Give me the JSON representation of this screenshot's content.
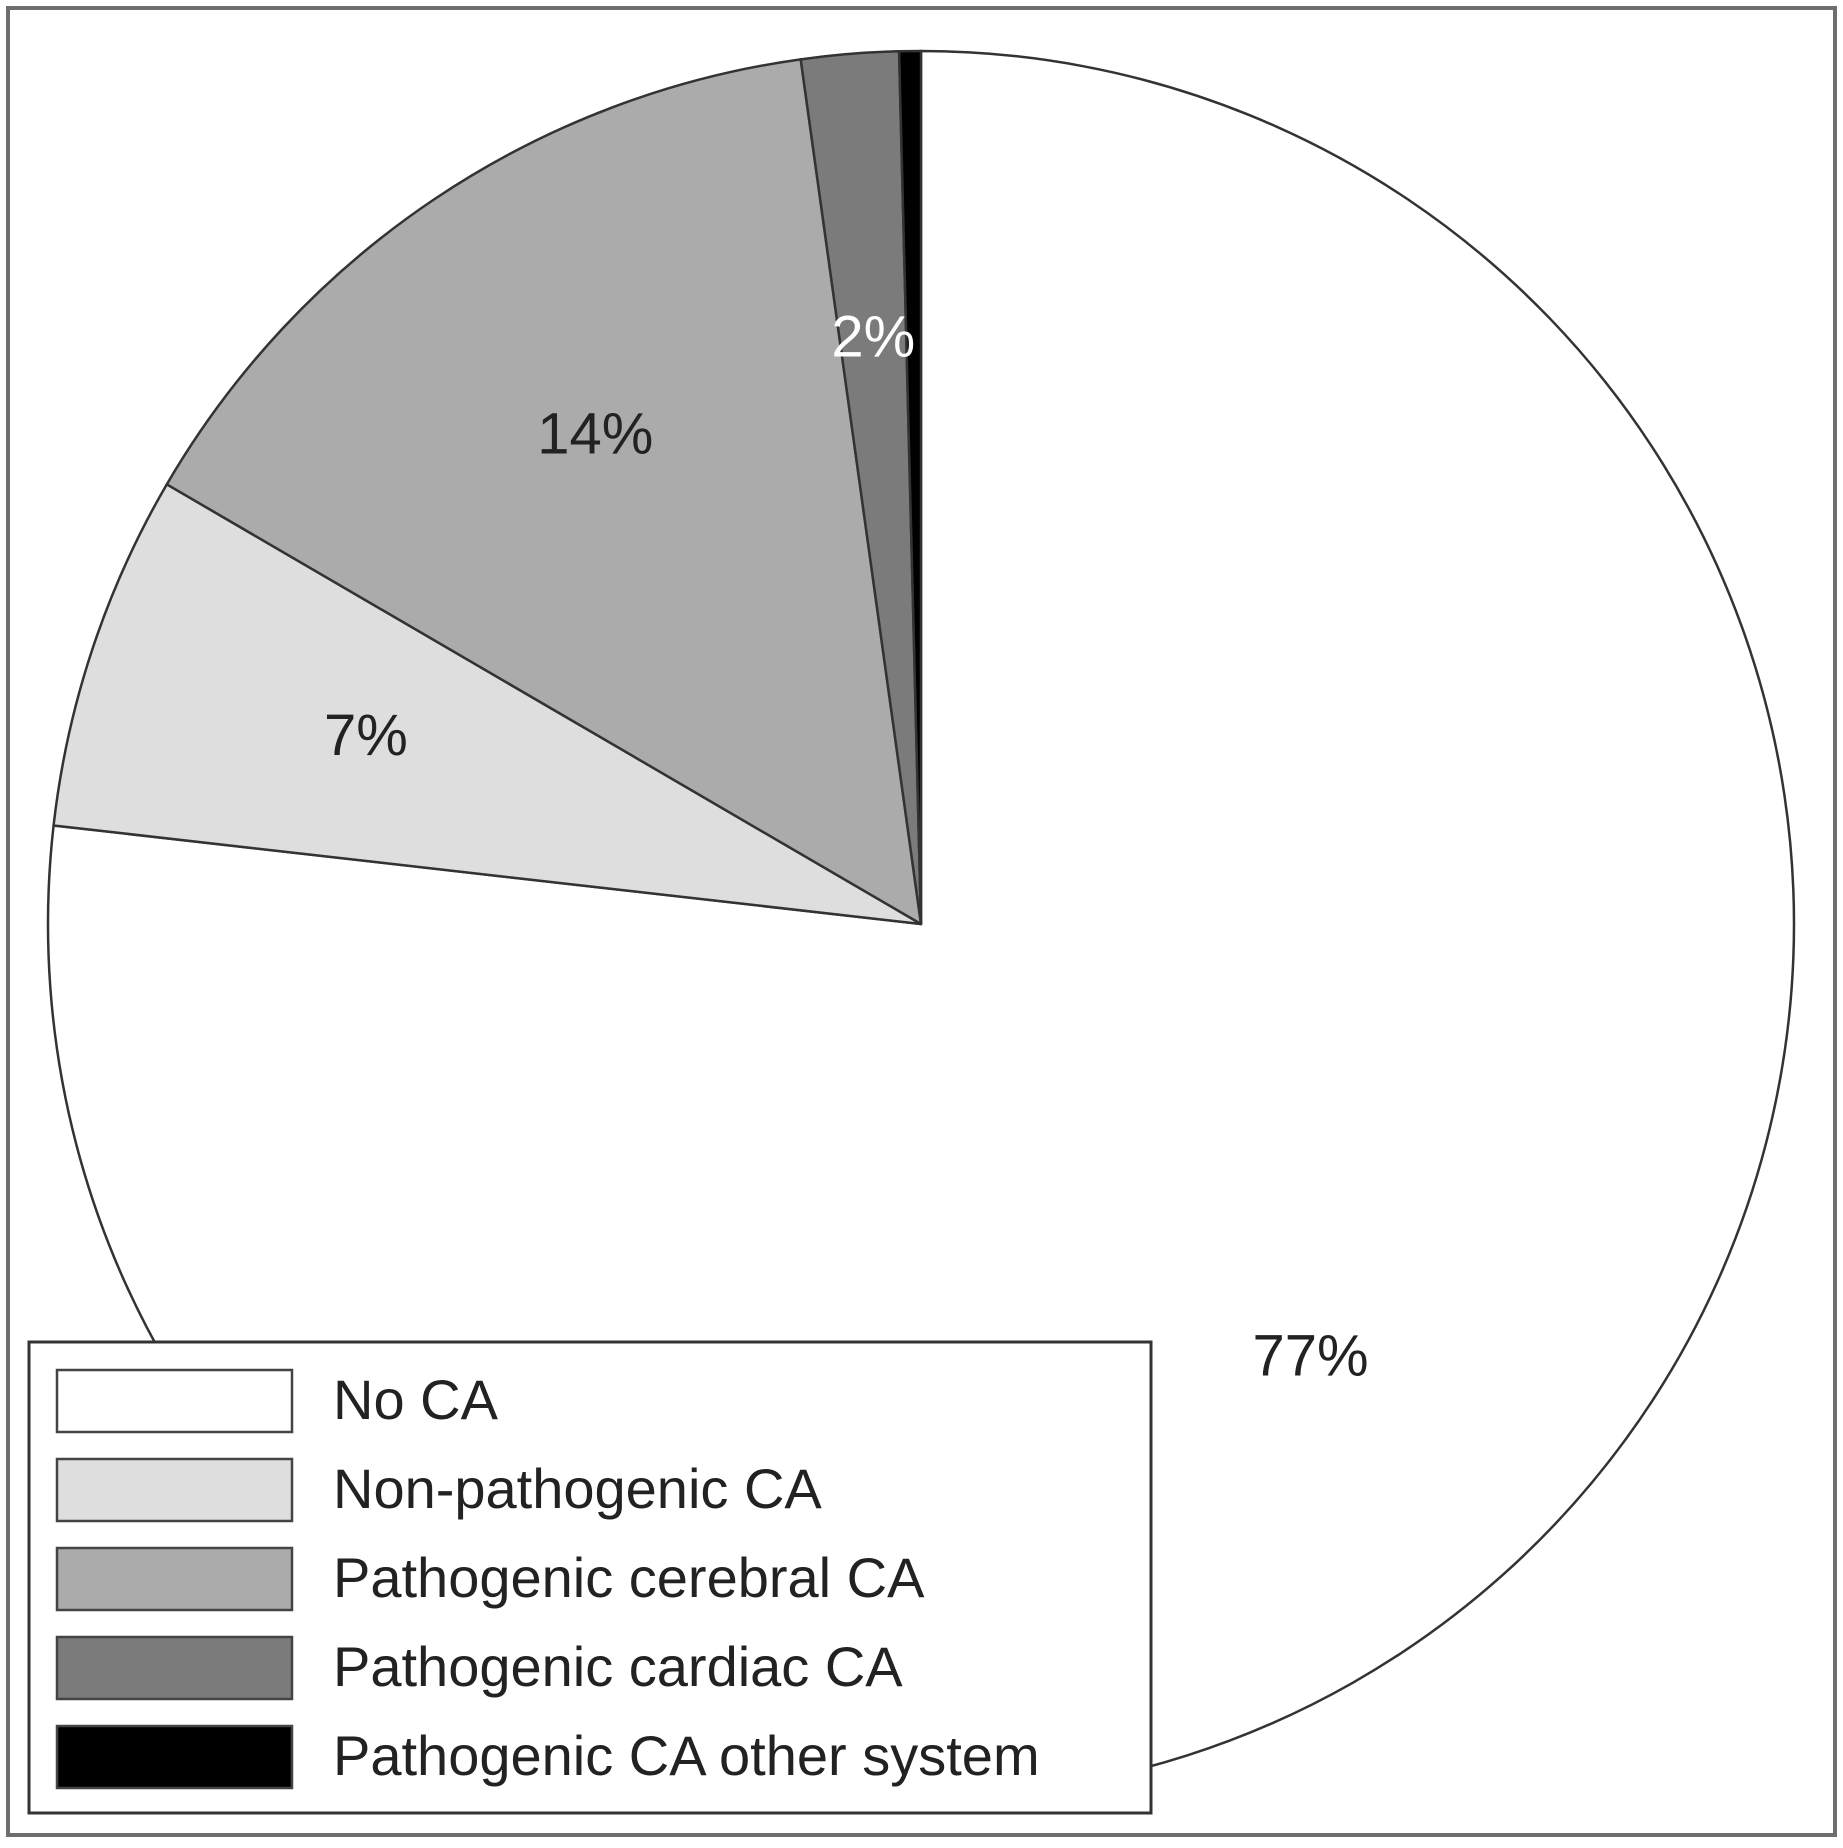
{
  "chart_data": {
    "type": "pie",
    "categories": [
      "No CA",
      "Non-pathogenic CA",
      "Pathogenic cerebral CA",
      "Pathogenic cardiac CA",
      "Pathogenic CA other system"
    ],
    "values": [
      76.8,
      6.6,
      14.4,
      1.8,
      0.4
    ],
    "value_labels": [
      "77%",
      "7%",
      "14%",
      "2%",
      null
    ],
    "colors": [
      "#ffffff",
      "#dedede",
      "#ababab",
      "#7b7b7b",
      "#000000"
    ],
    "label_colors": [
      "#222222",
      "#222222",
      "#222222",
      "#ffffff",
      null
    ],
    "legend": "bottom-left"
  }
}
